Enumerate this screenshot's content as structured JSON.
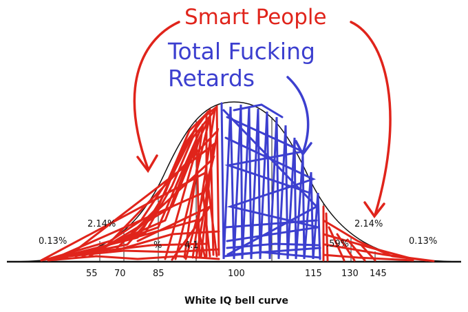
{
  "annotations": {
    "smart": "Smart People",
    "retards_line1": "Total Fucking",
    "retards_line2": "Retards"
  },
  "percent_labels": {
    "left_tail": "0.13%",
    "left_mid": "2.14%",
    "right_mid": "2.14%",
    "right_tail": "0.13%",
    "partial_left": "%",
    "partial_left2": "4.1",
    "partial_right": ".59%"
  },
  "ticks": [
    "55",
    "70",
    "85",
    "100",
    "115",
    "130",
    "145"
  ],
  "caption": "White IQ bell curve",
  "colors": {
    "red": "#e0241b",
    "blue": "#3c3fcf",
    "ink": "#111111"
  }
}
